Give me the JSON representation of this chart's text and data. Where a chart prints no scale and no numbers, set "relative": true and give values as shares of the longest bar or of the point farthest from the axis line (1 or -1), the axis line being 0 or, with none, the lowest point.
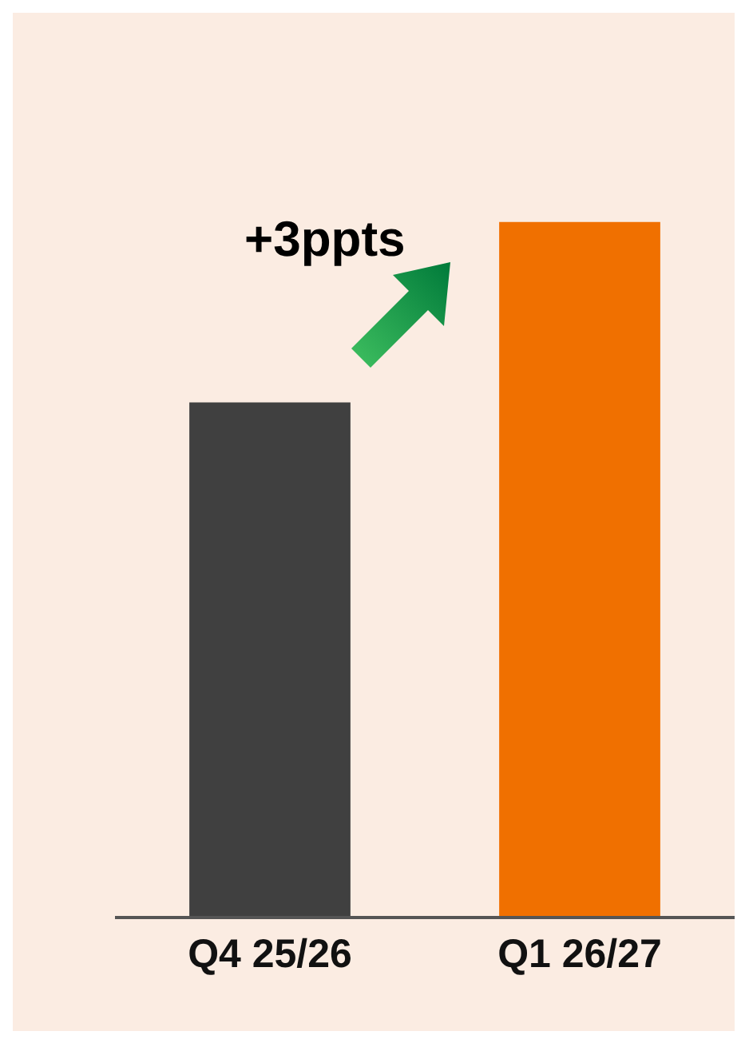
{
  "chart_data": {
    "type": "bar",
    "relative": true,
    "categories": [
      "Q4 25/26",
      "Q1 26/27"
    ],
    "values": [
      0.74,
      1
    ],
    "colors": [
      "#404040",
      "#f07000"
    ],
    "annotations": [
      "+3ppts"
    ]
  }
}
